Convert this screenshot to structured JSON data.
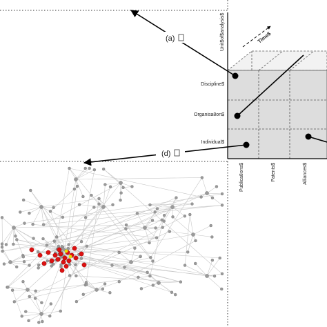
{
  "panel_labels": {
    "a": "(a)",
    "d": "(d)"
  },
  "axes": {
    "unit_of_analysis": "Unit$of$analysis$",
    "time": "Time$",
    "levels": [
      "Discipline$",
      "Organisa8on$",
      "Individual$"
    ],
    "outputs": [
      "Publica8ons$",
      "Patents$",
      "Alliances$"
    ]
  },
  "colors": {
    "cube_face": "#dddddd",
    "grid_line": "#666666",
    "network_edge": "#c8c8c8",
    "network_node": "#9a9a9a",
    "highlight_node": "#dd1111",
    "accent_node": "#e8e000"
  }
}
